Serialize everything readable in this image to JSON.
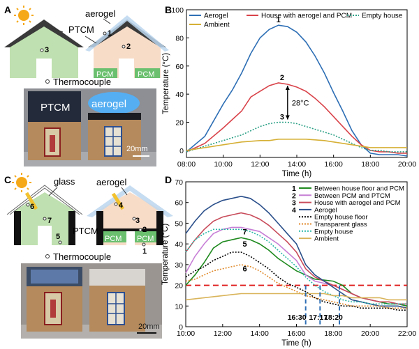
{
  "panels": {
    "A": {
      "letter": "A",
      "labels": {
        "aerogel": "aerogel",
        "ptcm": "PTCM",
        "pcm1": "PCM",
        "pcm2": "PCM",
        "thermocouple": "Thermocouple",
        "n1": "1",
        "n2": "2",
        "n3": "3"
      },
      "photo": {
        "left_lid": "PTCM",
        "right_lid": "aerogel",
        "scale": "20mm"
      }
    },
    "C": {
      "letter": "C",
      "labels": {
        "glass": "glass",
        "aerogel": "aerogel",
        "ptcm": "PTCM",
        "pcm1": "PCM",
        "pcm2": "PCM",
        "thermocouple": "Thermocouple",
        "n1": "1",
        "n2": "2",
        "n3": "3",
        "n4": "4",
        "n5": "5",
        "n6": "6",
        "n7": "7"
      },
      "photo": {
        "scale": "20mm"
      }
    },
    "B": {
      "letter": "B",
      "annotation": "28°C"
    },
    "D": {
      "letter": "D",
      "times": [
        "16:30",
        "17:17",
        "18:20"
      ]
    }
  },
  "chart_data": [
    {
      "type": "line",
      "panel": "B",
      "xlabel": "Time (h)",
      "ylabel": "Temperature (°C)",
      "xlim": [
        8,
        20
      ],
      "ylim": [
        -5,
        100
      ],
      "xticks": [
        "08:00",
        "10:00",
        "12:00",
        "14:00",
        "16:00",
        "18:00",
        "20:00"
      ],
      "yticks": [
        0,
        20,
        40,
        60,
        80,
        100
      ],
      "legend": [
        "Aerogel",
        "House with aerogel and PCM",
        "Empty house",
        "Ambient"
      ],
      "x": [
        8,
        9,
        10,
        10.5,
        11,
        11.5,
        12,
        12.5,
        13,
        13.5,
        14,
        14.5,
        15,
        15.5,
        16,
        16.5,
        17,
        17.5,
        18,
        18.5,
        19,
        19.5,
        20
      ],
      "series": [
        {
          "name": "Aerogel",
          "color": "#2e6fb5",
          "dash": "",
          "values": [
            -1,
            10,
            33,
            43,
            55,
            69,
            80,
            86,
            89,
            88,
            84,
            77,
            67,
            55,
            41,
            28,
            14,
            4,
            -2,
            -3,
            -3,
            -3,
            -4
          ]
        },
        {
          "name": "House with aerogel and PCM",
          "color": "#d9434a",
          "dash": "",
          "values": [
            -1,
            5,
            16,
            22,
            28,
            38,
            42,
            46,
            48,
            47,
            45,
            42,
            37,
            31,
            24,
            17,
            10,
            4,
            0,
            -1,
            -1,
            -2,
            -2
          ]
        },
        {
          "name": "Empty house",
          "color": "#2ba085",
          "dash": "2,2",
          "values": [
            -1,
            3,
            7,
            9,
            11,
            14,
            17,
            19,
            20,
            20,
            19,
            17,
            15,
            13,
            11,
            8,
            5,
            2,
            0,
            0,
            -1,
            -1,
            -1
          ]
        },
        {
          "name": "Ambient",
          "color": "#d6b036",
          "dash": "",
          "values": [
            0,
            2,
            4,
            5,
            6,
            6.5,
            7,
            7,
            8,
            8,
            8,
            8,
            7.5,
            7,
            6,
            5,
            4,
            3,
            2,
            2,
            2,
            2,
            2
          ]
        }
      ],
      "markers": [
        "1",
        "2",
        "3"
      ]
    },
    {
      "type": "line",
      "panel": "D",
      "xlabel": "Time (h)",
      "ylabel": "Temperature (°C)",
      "xlim": [
        10,
        22
      ],
      "ylim": [
        0,
        70
      ],
      "xticks": [
        "10:00",
        "12:00",
        "14:00",
        "16:00",
        "18:00",
        "20:00",
        "22:00"
      ],
      "yticks": [
        0,
        10,
        20,
        30,
        40,
        50,
        60,
        70
      ],
      "threshold": 20,
      "legend": [
        "Between house floor and PCM",
        "Between PCM and PTCM",
        "House with aerogel and PCM",
        "Aerogel",
        "Empty house floor",
        "Transparent glass",
        "Empty house",
        "Ambient"
      ],
      "legend_numbers": [
        "1",
        "2",
        "3",
        "4",
        "",
        "",
        "",
        ""
      ],
      "x": [
        10,
        10.5,
        11,
        11.5,
        12,
        12.5,
        13,
        13.5,
        14,
        14.5,
        15,
        15.5,
        16,
        16.5,
        17,
        17.5,
        18,
        18.5,
        19,
        19.5,
        20,
        20.5,
        21,
        21.5,
        22
      ],
      "series": [
        {
          "name": "Between house floor and PCM",
          "color": "#1f8a1f",
          "dash": "",
          "values": [
            20,
            25,
            31,
            38,
            41,
            42,
            43,
            42,
            40,
            37,
            33,
            30,
            27,
            25,
            23,
            22.5,
            22,
            20,
            16,
            14,
            13,
            12,
            11,
            11,
            10
          ]
        },
        {
          "name": "Between PCM and PTCM",
          "color": "#c77fd6",
          "dash": "",
          "values": [
            26,
            34,
            40,
            45,
            47,
            48,
            48,
            47,
            46,
            43,
            40,
            36,
            32,
            25,
            22,
            21,
            20,
            18,
            16,
            14,
            13,
            12,
            12,
            11,
            11
          ]
        },
        {
          "name": "House with aerogel and PCM",
          "color": "#c84b5a",
          "dash": "",
          "values": [
            36,
            42,
            47,
            51,
            53,
            54,
            55,
            54,
            52,
            49,
            45,
            41,
            36,
            28,
            24,
            22,
            20,
            18,
            16,
            14,
            13,
            12,
            12,
            11,
            11
          ]
        },
        {
          "name": "Aerogel",
          "color": "#2a4f8a",
          "dash": "",
          "values": [
            45,
            51,
            56,
            59,
            61,
            62,
            63,
            62,
            59,
            55,
            50,
            45,
            40,
            30,
            25,
            22,
            19,
            16,
            13,
            12,
            11,
            10,
            10,
            10,
            9
          ]
        },
        {
          "name": "Empty house floor",
          "color": "#000000",
          "dash": "2,2",
          "values": [
            24,
            27,
            29,
            32,
            34,
            36,
            36,
            34,
            31,
            28,
            24,
            21,
            19,
            17,
            14,
            12,
            11,
            10,
            10,
            9,
            9,
            9,
            9,
            8,
            8
          ]
        },
        {
          "name": "Transparent glass",
          "color": "#e08a2c",
          "dash": "2,2",
          "values": [
            22,
            23,
            25,
            27,
            28,
            29,
            30,
            29,
            27,
            24,
            21,
            19,
            17,
            15,
            14,
            13,
            12,
            11,
            10,
            10,
            10,
            10,
            9,
            9,
            9
          ]
        },
        {
          "name": "Empty house",
          "color": "#2bb8a8",
          "dash": "2,2",
          "values": [
            36,
            42,
            45,
            47,
            47,
            47,
            47,
            46,
            44,
            41,
            37,
            33,
            29,
            24,
            20,
            17,
            15,
            13,
            12,
            12,
            11,
            11,
            11,
            11,
            11
          ]
        },
        {
          "name": "Ambient",
          "color": "#d9b45a",
          "dash": "",
          "values": [
            13,
            13.5,
            14,
            14.5,
            15,
            15.5,
            16,
            16,
            16,
            16,
            16,
            16,
            16,
            16,
            16,
            16,
            15,
            15,
            14,
            14,
            14,
            14,
            13,
            13,
            13
          ]
        }
      ],
      "markers": [
        "5",
        "6",
        "7"
      ]
    }
  ]
}
